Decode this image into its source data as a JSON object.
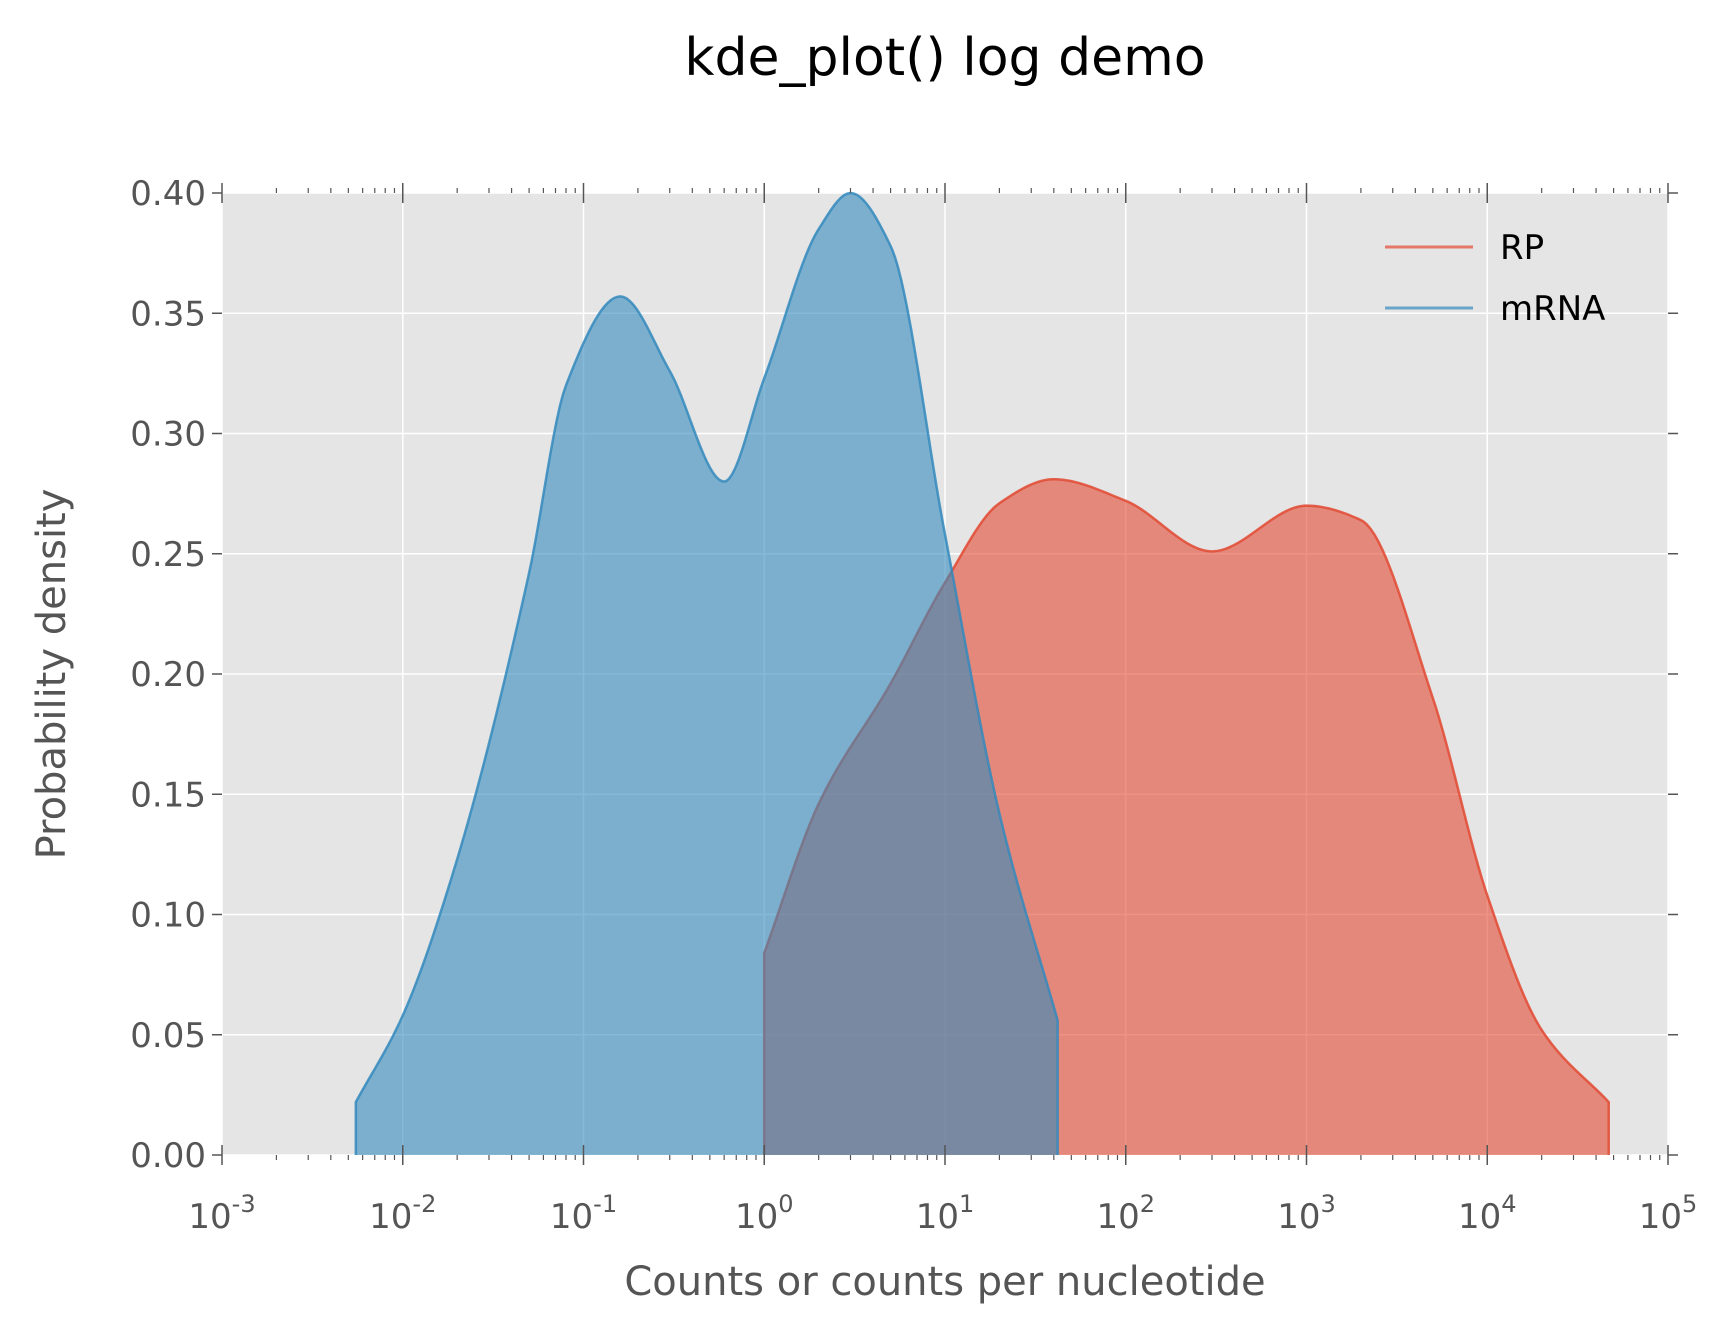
{
  "chart_data": {
    "type": "area",
    "title": "kde_plot() log demo",
    "xlabel": "Counts or counts per nucleotide",
    "ylabel": "Probability density",
    "x_scale": "log",
    "xlim": [
      0.001,
      100000
    ],
    "ylim": [
      0,
      0.4
    ],
    "x_ticks": [
      {
        "value": 0.001,
        "base": "10",
        "exp": "-3"
      },
      {
        "value": 0.01,
        "base": "10",
        "exp": "-2"
      },
      {
        "value": 0.1,
        "base": "10",
        "exp": "-1"
      },
      {
        "value": 1,
        "base": "10",
        "exp": "0"
      },
      {
        "value": 10,
        "base": "10",
        "exp": "1"
      },
      {
        "value": 100,
        "base": "10",
        "exp": "2"
      },
      {
        "value": 1000,
        "base": "10",
        "exp": "3"
      },
      {
        "value": 10000,
        "base": "10",
        "exp": "4"
      },
      {
        "value": 100000,
        "base": "10",
        "exp": "5"
      }
    ],
    "y_ticks": [
      {
        "value": 0.0,
        "label": "0.00"
      },
      {
        "value": 0.05,
        "label": "0.05"
      },
      {
        "value": 0.1,
        "label": "0.10"
      },
      {
        "value": 0.15,
        "label": "0.15"
      },
      {
        "value": 0.2,
        "label": "0.20"
      },
      {
        "value": 0.25,
        "label": "0.25"
      },
      {
        "value": 0.3,
        "label": "0.30"
      },
      {
        "value": 0.35,
        "label": "0.35"
      },
      {
        "value": 0.4,
        "label": "0.40"
      }
    ],
    "grid": true,
    "background": "#e5e5e5",
    "legend_position": "top-right",
    "series": [
      {
        "name": "RP",
        "color": "#e24a33",
        "fill": "#e8877a",
        "x": [
          1,
          2,
          5,
          10,
          20,
          40,
          100,
          300,
          1000,
          2000,
          5000,
          10000,
          20000,
          47000
        ],
        "y": [
          0.084,
          0.146,
          0.196,
          0.238,
          0.271,
          0.281,
          0.272,
          0.251,
          0.27,
          0.264,
          0.19,
          0.108,
          0.052,
          0.022
        ]
      },
      {
        "name": "mRNA",
        "color": "#348abd",
        "fill": "#7aaed0",
        "x": [
          0.0055,
          0.01,
          0.02,
          0.05,
          0.08,
          0.16,
          0.3,
          0.6,
          1,
          2,
          3,
          5,
          10,
          20,
          42
        ],
        "y": [
          0.022,
          0.058,
          0.123,
          0.242,
          0.32,
          0.357,
          0.326,
          0.28,
          0.323,
          0.385,
          0.4,
          0.378,
          0.258,
          0.142,
          0.056
        ]
      }
    ]
  }
}
